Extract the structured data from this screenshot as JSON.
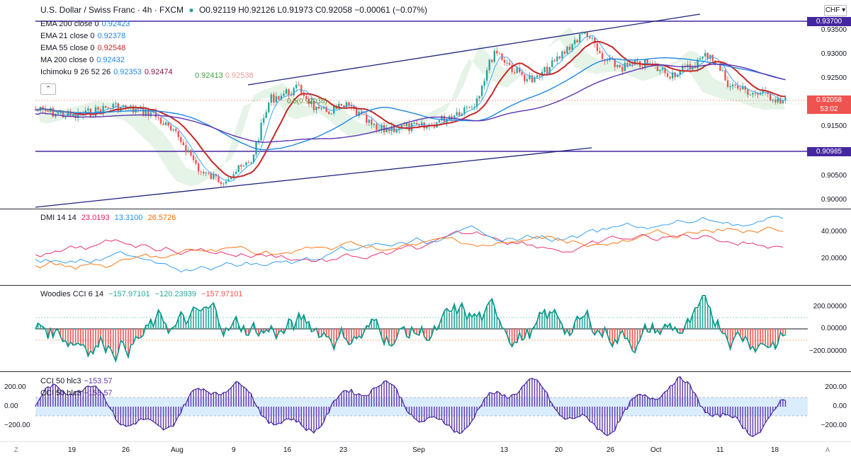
{
  "header": {
    "symbol": "U.S. Dollar / Swiss Franc · 4h · FXCM",
    "ohlc": "O0.92119 H0.92126 L0.91973 C0.92058 −0.00061 (−0.07%)",
    "currency_button": "CHF",
    "collapse_glyph": "⌃"
  },
  "price_pane": {
    "legend": [
      {
        "name": "EMA 200 close 0",
        "value": "0.92423",
        "color": "#1e88e5"
      },
      {
        "name": "EMA 21 close 0",
        "value": "0.92378",
        "color": "#1e88e5"
      },
      {
        "name": "EMA 55 close 0",
        "value": "0.92548",
        "color": "#c62828"
      },
      {
        "name": "MA 200 close 0",
        "value": "0.92432",
        "color": "#1e88e5"
      },
      {
        "name": "Ichimoku 9 26 52 26",
        "values": [
          "0.92353",
          "0.92474",
          "0.92413",
          "0.92538"
        ],
        "colors": [
          "#1e88e5",
          "#880e4f",
          "#43a047",
          "#ef9a9a"
        ]
      }
    ],
    "fib_label": "0.5(0.92038)",
    "axis_ticks": [
      "0.93500",
      "0.93000",
      "0.92500",
      "0.91500",
      "0.90500",
      "0.90000"
    ],
    "level_upper": "0.93700",
    "level_lower": "0.90985",
    "last_price": "0.92058",
    "countdown": "53:02"
  },
  "dmi_pane": {
    "legend_name": "DMI 14 14",
    "values": [
      "23.0193",
      "13.3100",
      "26.5726"
    ],
    "colors": [
      "#e91e63",
      "#2196f3",
      "#ff6d00"
    ],
    "axis_ticks": [
      "40.0000",
      "20.0000"
    ]
  },
  "cci_woodies_pane": {
    "legend_name": "Woodies CCI 6 14",
    "values": [
      "−157.97101",
      "−120.23939",
      "−157.97101"
    ],
    "colors": [
      "#26a69a",
      "#26a69a",
      "#ef5350"
    ],
    "axis_ticks": [
      "200.00000",
      "0.00000",
      "−200.00000"
    ]
  },
  "cci50_pane": {
    "legend_line1": "CCI 50 hlc3",
    "legend_value1": "−153.57",
    "legend_line2": "CCI 50 hlc3",
    "legend_value2": "−153.57",
    "axis_ticks": [
      "200.00",
      "0.00",
      "−200.00"
    ],
    "left_ticks": [
      "200.00",
      "0.00",
      "−200.00"
    ]
  },
  "x_axis": {
    "labels": [
      "19",
      "26",
      "Aug",
      "9",
      "16",
      "23",
      "Sep",
      "13",
      "20",
      "26",
      "Oct",
      "11",
      "18"
    ],
    "left_button": "Z",
    "right_button": "A"
  },
  "colors": {
    "up": "#26a69a",
    "down": "#ef5350",
    "channel": "#1a237e",
    "level": "#4527a0"
  }
}
